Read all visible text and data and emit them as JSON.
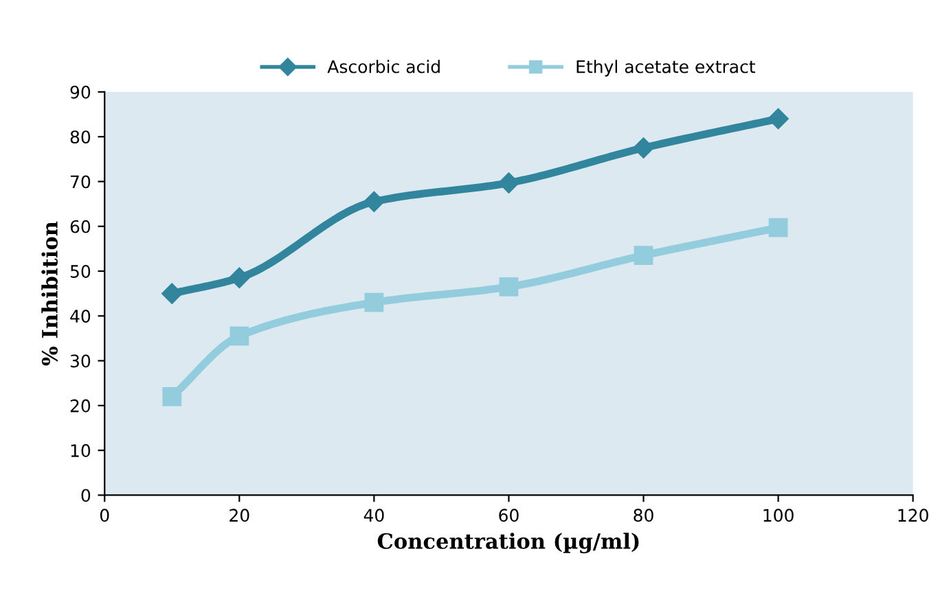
{
  "chart_data": {
    "type": "line",
    "xlabel": "Concentration (µg/ml)",
    "ylabel": "% Inhibition",
    "x": [
      10,
      20,
      40,
      60,
      80,
      100
    ],
    "series": [
      {
        "name": "Ascorbic acid",
        "color": "#31859c",
        "marker": "diamond",
        "values": [
          45,
          48.5,
          65.5,
          69.7,
          77.5,
          84
        ]
      },
      {
        "name": "Ethyl acetate extract",
        "color": "#93cddd",
        "marker": "square",
        "values": [
          22,
          35.5,
          43,
          46.5,
          53.5,
          59.7
        ]
      }
    ],
    "xlim": [
      0,
      120
    ],
    "xticks": [
      0,
      20,
      40,
      60,
      80,
      100,
      120
    ],
    "ylim": [
      0,
      90
    ],
    "yticks": [
      0,
      10,
      20,
      30,
      40,
      50,
      60,
      70,
      80,
      90
    ],
    "grid": false,
    "legend": "top",
    "line_style": "solid"
  }
}
